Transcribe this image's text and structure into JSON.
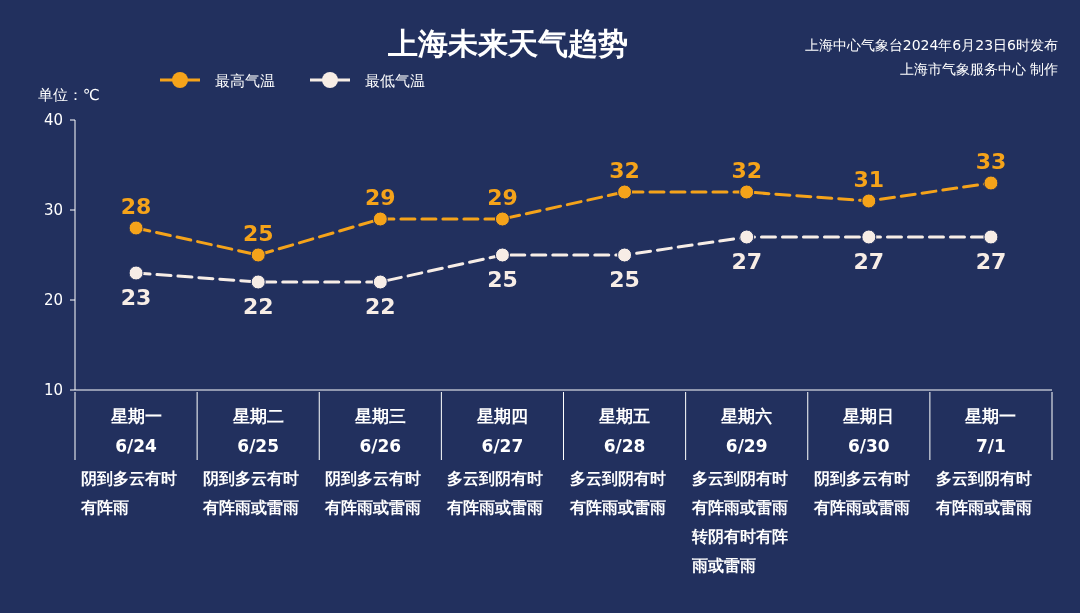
{
  "chart_data": {
    "type": "line",
    "title": "上海未来天气趋势",
    "ylabel": "单位：℃",
    "categories": [
      "星期一\n6/24",
      "星期二\n6/25",
      "星期三\n6/26",
      "星期四\n6/27",
      "星期五\n6/28",
      "星期六\n6/29",
      "星期日\n6/30",
      "星期一\n7/1"
    ],
    "series": [
      {
        "name": "最高气温",
        "color": "#f5a31a",
        "values": [
          28,
          25,
          29,
          29,
          32,
          32,
          31,
          33
        ]
      },
      {
        "name": "最低气温",
        "color": "#f7ede6",
        "values": [
          23,
          22,
          22,
          25,
          25,
          27,
          27,
          27
        ]
      }
    ],
    "ylim": [
      10,
      40
    ],
    "yticks": [
      10,
      20,
      30,
      40
    ],
    "data_labels": true,
    "marker": "circle",
    "line_style": "dashed",
    "legend": "top left",
    "grid": false,
    "annotations": [
      "上海中心气象台2024年6月23日6时发布",
      "上海市气象服务中心 制作",
      "阴到多云有时有阵雨",
      "阴到多云有时有阵雨或雷雨",
      "阴到多云有时有阵雨或雷雨",
      "多云到阴有时有阵雨或雷雨",
      "多云到阴有时有阵雨或雷雨",
      "多云到阴有时有阵雨或雷雨转阴有时有阵雨或雷雨",
      "阴到多云有时有阵雨或雷雨",
      "多云到阴有时有阵雨或雷雨"
    ]
  }
}
